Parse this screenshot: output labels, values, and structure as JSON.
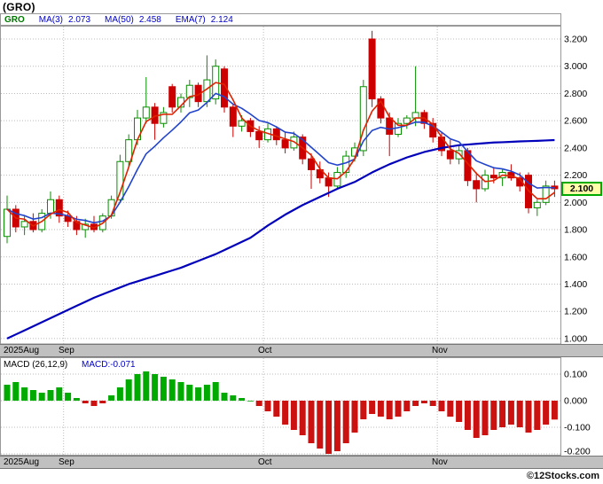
{
  "title": "(GRO)",
  "legend": {
    "symbol": "GRO",
    "ma3_label": "MA(3)",
    "ma3_value": "2.073",
    "ma50_label": "MA(50)",
    "ma50_value": "2.458",
    "ema7_label": "EMA(7)",
    "ema7_value": "2.124"
  },
  "price_badge": "2.100",
  "macd": {
    "label": "MACD (26,12,9)",
    "value": "MACD:-0.071"
  },
  "footer": {
    "watermark": "©12Stocks.com"
  },
  "axis": {
    "x_labels": [
      "2025Aug",
      "Sep",
      "Oct",
      "Nov"
    ],
    "price_ticks": [
      "3.200",
      "3.000",
      "2.800",
      "2.600",
      "2.400",
      "2.200",
      "2.000",
      "1.800",
      "1.600",
      "1.400",
      "1.200",
      "1.000"
    ],
    "macd_ticks": [
      "0.100",
      "0.000",
      "-0.100",
      "-0.200"
    ]
  },
  "colors": {
    "up": "#089000",
    "down": "#cc0000",
    "ma3": "#dd2200",
    "ema7": "#2244cc",
    "ma50": "#0000bb",
    "macd_up": "#00aa00",
    "macd_down": "#cc1111",
    "grid": "#bbbbbb",
    "frame": "#999999",
    "month_bar_bg": "#c0c0c0",
    "legend_blue": "#0000cc",
    "legend_green": "#007700",
    "badge_bg": "#ffffaa",
    "badge_border": "#00aa00"
  },
  "chart_data": {
    "type": "candlestick",
    "title": "(GRO)",
    "x_axis": {
      "labels": [
        "2025Aug",
        "Sep",
        "Oct",
        "Nov"
      ],
      "month_start_indices": [
        7,
        30,
        50
      ],
      "n_points": 64
    },
    "price_axis": {
      "min": 1.0,
      "max": 3.2,
      "step": 0.2
    },
    "last_price": 2.1,
    "indicator_values": {
      "ma3": 2.073,
      "ma50": 2.458,
      "ema7": 2.124,
      "macd_26_12_9": -0.071
    },
    "candles_ohlc": [
      [
        1.75,
        2.05,
        1.7,
        1.95
      ],
      [
        1.95,
        1.98,
        1.78,
        1.82
      ],
      [
        1.82,
        1.9,
        1.76,
        1.86
      ],
      [
        1.86,
        1.92,
        1.78,
        1.8
      ],
      [
        1.8,
        1.95,
        1.78,
        1.92
      ],
      [
        1.92,
        2.08,
        1.88,
        2.02
      ],
      [
        2.02,
        2.05,
        1.85,
        1.9
      ],
      [
        1.9,
        1.94,
        1.82,
        1.86
      ],
      [
        1.86,
        1.9,
        1.76,
        1.8
      ],
      [
        1.8,
        1.88,
        1.74,
        1.84
      ],
      [
        1.84,
        1.9,
        1.78,
        1.8
      ],
      [
        1.8,
        1.92,
        1.78,
        1.9
      ],
      [
        1.9,
        2.05,
        1.88,
        2.02
      ],
      [
        2.02,
        2.35,
        2.0,
        2.3
      ],
      [
        2.3,
        2.5,
        2.26,
        2.46
      ],
      [
        2.46,
        2.68,
        2.42,
        2.62
      ],
      [
        2.62,
        2.92,
        2.58,
        2.7
      ],
      [
        2.7,
        2.73,
        2.46,
        2.58
      ],
      [
        2.58,
        2.7,
        2.55,
        2.66
      ],
      [
        2.85,
        2.87,
        2.66,
        2.7
      ],
      [
        2.7,
        2.8,
        2.66,
        2.77
      ],
      [
        2.77,
        2.9,
        2.7,
        2.86
      ],
      [
        2.86,
        2.88,
        2.7,
        2.74
      ],
      [
        2.74,
        3.08,
        2.7,
        2.9
      ],
      [
        2.76,
        3.05,
        2.72,
        3.0
      ],
      [
        2.98,
        3.0,
        2.66,
        2.7
      ],
      [
        2.7,
        2.72,
        2.48,
        2.56
      ],
      [
        2.56,
        2.64,
        2.52,
        2.6
      ],
      [
        2.6,
        2.62,
        2.48,
        2.52
      ],
      [
        2.52,
        2.56,
        2.4,
        2.46
      ],
      [
        2.46,
        2.58,
        2.44,
        2.54
      ],
      [
        2.54,
        2.56,
        2.42,
        2.46
      ],
      [
        2.46,
        2.52,
        2.36,
        2.4
      ],
      [
        2.4,
        2.52,
        2.38,
        2.48
      ],
      [
        2.48,
        2.5,
        2.28,
        2.32
      ],
      [
        2.32,
        2.36,
        2.1,
        2.24
      ],
      [
        2.24,
        2.3,
        2.14,
        2.18
      ],
      [
        2.18,
        2.22,
        2.04,
        2.12
      ],
      [
        2.12,
        2.26,
        2.1,
        2.22
      ],
      [
        2.22,
        2.38,
        2.18,
        2.34
      ],
      [
        2.34,
        2.44,
        2.3,
        2.4
      ],
      [
        2.38,
        2.9,
        2.34,
        2.85
      ],
      [
        3.2,
        3.26,
        2.7,
        2.76
      ],
      [
        2.76,
        2.78,
        2.58,
        2.62
      ],
      [
        2.62,
        2.66,
        2.34,
        2.5
      ],
      [
        2.5,
        2.62,
        2.48,
        2.58
      ],
      [
        2.58,
        2.64,
        2.54,
        2.62
      ],
      [
        2.62,
        3.0,
        2.56,
        2.66
      ],
      [
        2.66,
        2.68,
        2.54,
        2.58
      ],
      [
        2.58,
        2.62,
        2.44,
        2.48
      ],
      [
        2.48,
        2.52,
        2.34,
        2.38
      ],
      [
        2.38,
        2.46,
        2.28,
        2.32
      ],
      [
        2.32,
        2.42,
        2.28,
        2.38
      ],
      [
        2.38,
        2.4,
        2.12,
        2.16
      ],
      [
        2.16,
        2.22,
        2.0,
        2.1
      ],
      [
        2.1,
        2.24,
        2.08,
        2.2
      ],
      [
        2.2,
        2.26,
        2.14,
        2.18
      ],
      [
        2.18,
        2.24,
        2.12,
        2.22
      ],
      [
        2.22,
        2.28,
        2.16,
        2.18
      ],
      [
        2.18,
        2.22,
        2.08,
        2.12
      ],
      [
        2.2,
        2.22,
        1.92,
        1.96
      ],
      [
        1.96,
        2.02,
        1.9,
        2.0
      ],
      [
        2.0,
        2.16,
        1.98,
        2.12
      ],
      [
        2.12,
        2.16,
        2.04,
        2.1
      ]
    ],
    "overlays": {
      "ma3_period": 3,
      "ema_period": 7,
      "ma50_period": 50,
      "ma50": [
        1.0,
        1.03,
        1.06,
        1.09,
        1.12,
        1.15,
        1.18,
        1.21,
        1.24,
        1.27,
        1.3,
        1.325,
        1.35,
        1.375,
        1.4,
        1.42,
        1.44,
        1.46,
        1.48,
        1.5,
        1.52,
        1.545,
        1.57,
        1.595,
        1.62,
        1.65,
        1.68,
        1.71,
        1.74,
        1.785,
        1.83,
        1.87,
        1.91,
        1.945,
        1.98,
        2.01,
        2.04,
        2.07,
        2.1,
        2.125,
        2.15,
        2.185,
        2.22,
        2.25,
        2.28,
        2.305,
        2.33,
        2.35,
        2.37,
        2.385,
        2.4,
        2.41,
        2.42,
        2.425,
        2.43,
        2.435,
        2.44,
        2.442,
        2.445,
        2.448,
        2.45,
        2.452,
        2.455,
        2.458
      ]
    },
    "macd": {
      "type": "bar",
      "params": [
        26,
        12,
        9
      ],
      "value": -0.071,
      "axis": {
        "min": -0.2,
        "max": 0.1,
        "step": 0.1
      },
      "histogram": [
        0.06,
        0.07,
        0.05,
        0.04,
        0.03,
        0.04,
        0.05,
        0.03,
        0.01,
        -0.01,
        -0.02,
        -0.01,
        0.02,
        0.05,
        0.08,
        0.1,
        0.11,
        0.1,
        0.09,
        0.08,
        0.07,
        0.06,
        0.05,
        0.06,
        0.07,
        0.03,
        0.02,
        0.01,
        0.0,
        -0.02,
        -0.04,
        -0.06,
        -0.09,
        -0.11,
        -0.13,
        -0.16,
        -0.18,
        -0.2,
        -0.19,
        -0.16,
        -0.12,
        -0.07,
        -0.05,
        -0.06,
        -0.07,
        -0.06,
        -0.04,
        -0.02,
        -0.01,
        -0.02,
        -0.04,
        -0.06,
        -0.08,
        -0.11,
        -0.14,
        -0.13,
        -0.11,
        -0.1,
        -0.09,
        -0.1,
        -0.12,
        -0.11,
        -0.09,
        -0.071
      ]
    }
  }
}
